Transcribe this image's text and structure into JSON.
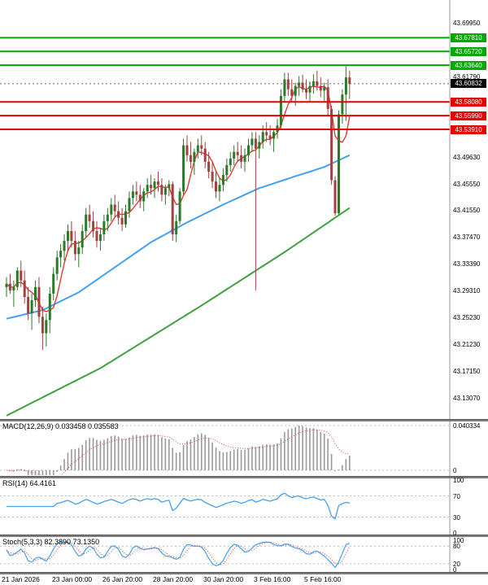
{
  "colors": {
    "bull": "#2a7a2a",
    "bear": "#a34040",
    "ma_fast": "#e53935",
    "ma_mid": "#44a0f0",
    "ma_slow": "#3fa03f",
    "resistance": "#00a800",
    "support": "#e60000",
    "current_badge": "#000000",
    "current_line": "#666666",
    "macd_bar": "#9a9a9a",
    "signal_line": "#d94040",
    "rsi_line": "#44a0f0",
    "stoch_k": "#44a0f0",
    "stoch_d": "#d94040",
    "level_dotted": "#bbbbbb",
    "axis_boundary": "#999999"
  },
  "chart_data": {
    "type": "candlestick",
    "ohlc_format": "[open, high, low, close]",
    "price_axis": {
      "plain_labels": [
        "43.69950",
        "43.61790",
        "43.49630",
        "43.45550",
        "43.41550",
        "43.37470",
        "43.33390",
        "43.29310",
        "43.25230",
        "43.21230",
        "43.17150",
        "43.13070"
      ],
      "resistance_badges": [
        "43.67810",
        "43.65720",
        "43.63640"
      ],
      "support_badges": [
        "43.58080",
        "43.55990",
        "43.53910"
      ],
      "current_price_badge": "43.60832"
    },
    "levels": {
      "resistance": [
        43.6781,
        43.6572,
        43.6364
      ],
      "support": [
        43.5808,
        43.5599,
        43.5391
      ],
      "current_price": 43.60832
    },
    "time_labels": [
      "21 Jan 2026",
      "23 Jan 00:00",
      "26 Jan 20:00",
      "28 Jan 20:00",
      "30 Jan 20:00",
      "3 Feb 16:00",
      "5 Feb 16:00"
    ],
    "candles": [
      [
        43.3,
        43.315,
        43.285,
        43.305
      ],
      [
        43.305,
        43.32,
        43.29,
        43.295
      ],
      [
        43.295,
        43.31,
        43.27,
        43.3
      ],
      [
        43.3,
        43.33,
        43.295,
        43.325
      ],
      [
        43.325,
        43.34,
        43.3,
        43.31
      ],
      [
        43.31,
        43.325,
        43.275,
        43.285
      ],
      [
        43.285,
        43.3,
        43.25,
        43.26
      ],
      [
        43.26,
        43.29,
        43.235,
        43.28
      ],
      [
        43.28,
        43.31,
        43.27,
        43.3
      ],
      [
        43.3,
        43.315,
        43.245,
        43.255
      ],
      [
        43.255,
        43.27,
        43.205,
        43.23
      ],
      [
        43.23,
        43.26,
        43.21,
        43.25
      ],
      [
        43.25,
        43.3,
        43.23,
        43.29
      ],
      [
        43.29,
        43.33,
        43.28,
        43.32
      ],
      [
        43.32,
        43.355,
        43.31,
        43.345
      ],
      [
        43.345,
        43.365,
        43.33,
        43.355
      ],
      [
        43.355,
        43.38,
        43.34,
        43.37
      ],
      [
        43.37,
        43.395,
        43.355,
        43.385
      ],
      [
        43.385,
        43.4,
        43.36,
        43.37
      ],
      [
        43.37,
        43.385,
        43.34,
        43.35
      ],
      [
        43.35,
        43.37,
        43.33,
        43.36
      ],
      [
        43.36,
        43.395,
        43.35,
        43.385
      ],
      [
        43.385,
        43.42,
        43.375,
        43.41
      ],
      [
        43.41,
        43.425,
        43.39,
        43.4
      ],
      [
        43.4,
        43.415,
        43.375,
        43.385
      ],
      [
        43.385,
        43.4,
        43.36,
        43.37
      ],
      [
        43.37,
        43.39,
        43.355,
        43.38
      ],
      [
        43.38,
        43.41,
        43.37,
        43.4
      ],
      [
        43.4,
        43.42,
        43.385,
        43.41
      ],
      [
        43.41,
        43.435,
        43.4,
        43.425
      ],
      [
        43.425,
        43.44,
        43.405,
        43.415
      ],
      [
        43.415,
        43.43,
        43.395,
        43.405
      ],
      [
        43.405,
        43.42,
        43.385,
        43.395
      ],
      [
        43.395,
        43.425,
        43.39,
        43.415
      ],
      [
        43.415,
        43.445,
        43.405,
        43.435
      ],
      [
        43.435,
        43.455,
        43.425,
        43.445
      ],
      [
        43.445,
        43.46,
        43.43,
        43.44
      ],
      [
        43.44,
        43.455,
        43.42,
        43.43
      ],
      [
        43.43,
        43.45,
        43.415,
        43.445
      ],
      [
        43.445,
        43.465,
        43.435,
        43.455
      ],
      [
        43.455,
        43.47,
        43.44,
        43.45
      ],
      [
        43.45,
        43.465,
        43.435,
        43.46
      ],
      [
        43.46,
        43.475,
        43.445,
        43.455
      ],
      [
        43.455,
        43.465,
        43.43,
        43.44
      ],
      [
        43.44,
        43.455,
        43.425,
        43.45
      ],
      [
        43.45,
        43.462,
        43.438,
        43.456
      ],
      [
        43.456,
        43.46,
        43.37,
        43.38
      ],
      [
        43.38,
        43.41,
        43.368,
        43.4
      ],
      [
        43.4,
        43.45,
        43.395,
        43.445
      ],
      [
        43.445,
        43.525,
        43.44,
        43.515
      ],
      [
        43.515,
        43.53,
        43.49,
        43.5
      ],
      [
        43.5,
        43.52,
        43.48,
        43.49
      ],
      [
        43.49,
        43.51,
        43.47,
        43.505
      ],
      [
        43.505,
        43.525,
        43.495,
        43.515
      ],
      [
        43.515,
        43.53,
        43.5,
        43.51
      ],
      [
        43.51,
        43.52,
        43.48,
        43.49
      ],
      [
        43.49,
        43.505,
        43.465,
        43.475
      ],
      [
        43.475,
        43.49,
        43.45,
        43.46
      ],
      [
        43.46,
        43.475,
        43.435,
        43.445
      ],
      [
        43.445,
        43.465,
        43.43,
        43.455
      ],
      [
        43.455,
        43.48,
        43.445,
        43.47
      ],
      [
        43.47,
        43.495,
        43.46,
        43.485
      ],
      [
        43.485,
        43.505,
        43.475,
        43.495
      ],
      [
        43.495,
        43.515,
        43.485,
        43.505
      ],
      [
        43.505,
        43.52,
        43.49,
        43.5
      ],
      [
        43.5,
        43.515,
        43.48,
        43.49
      ],
      [
        43.49,
        43.51,
        43.475,
        43.5
      ],
      [
        43.5,
        43.525,
        43.49,
        43.515
      ],
      [
        43.515,
        43.535,
        43.505,
        43.525
      ],
      [
        43.525,
        43.535,
        43.295,
        43.51
      ],
      [
        43.51,
        43.53,
        43.495,
        43.52
      ],
      [
        43.52,
        43.545,
        43.51,
        43.535
      ],
      [
        43.535,
        43.55,
        43.52,
        43.53
      ],
      [
        43.53,
        43.545,
        43.515,
        43.525
      ],
      [
        43.525,
        43.54,
        43.505,
        43.535
      ],
      [
        43.535,
        43.555,
        43.525,
        43.545
      ],
      [
        43.545,
        43.6,
        43.54,
        43.59
      ],
      [
        43.59,
        43.625,
        43.58,
        43.615
      ],
      [
        43.615,
        43.625,
        43.59,
        43.6
      ],
      [
        43.6,
        43.615,
        43.58,
        43.59
      ],
      [
        43.59,
        43.61,
        43.575,
        43.605
      ],
      [
        43.605,
        43.62,
        43.59,
        43.61
      ],
      [
        43.61,
        43.622,
        43.595,
        43.6
      ],
      [
        43.6,
        43.615,
        43.585,
        43.595
      ],
      [
        43.595,
        43.612,
        43.58,
        43.605
      ],
      [
        43.605,
        43.623,
        43.593,
        43.612
      ],
      [
        43.612,
        43.628,
        43.598,
        43.605
      ],
      [
        43.605,
        43.618,
        43.588,
        43.598
      ],
      [
        43.598,
        43.61,
        43.582,
        43.603
      ],
      [
        43.603,
        43.615,
        43.56,
        43.57
      ],
      [
        43.57,
        43.575,
        43.455,
        43.462
      ],
      [
        43.462,
        43.468,
        43.408,
        43.412
      ],
      [
        43.412,
        43.568,
        43.41,
        43.562
      ],
      [
        43.562,
        43.6,
        43.548,
        43.592
      ],
      [
        43.592,
        43.635,
        43.552,
        43.618
      ],
      [
        43.618,
        43.628,
        43.585,
        43.608
      ]
    ],
    "ma_mid_points": [
      [
        0,
        43.252
      ],
      [
        10,
        43.265
      ],
      [
        20,
        43.292
      ],
      [
        30,
        43.33
      ],
      [
        40,
        43.368
      ],
      [
        50,
        43.398
      ],
      [
        60,
        43.425
      ],
      [
        70,
        43.45
      ],
      [
        80,
        43.468
      ],
      [
        88,
        43.482
      ],
      [
        95,
        43.5
      ]
    ],
    "ma_slow_points": [
      [
        0,
        43.105
      ],
      [
        26,
        43.177
      ],
      [
        54,
        43.272
      ],
      [
        77,
        43.353
      ],
      [
        95,
        43.42
      ]
    ],
    "indicators": [
      {
        "name": "macd",
        "label": "MACD(12,26,9) 0.033458 0.035583",
        "axis_labels": [
          "0.040334",
          "0"
        ]
      },
      {
        "name": "rsi",
        "label": "RSI(14) 64.4161",
        "axis_labels": [
          "100",
          "70",
          "30",
          "0"
        ],
        "levels": [
          70,
          30
        ]
      },
      {
        "name": "stoch",
        "label": "Stoch(5,3,3) 82.3890 73.1350",
        "axis_labels": [
          "100",
          "80",
          "20",
          "0"
        ],
        "levels": [
          80,
          20
        ]
      }
    ]
  }
}
